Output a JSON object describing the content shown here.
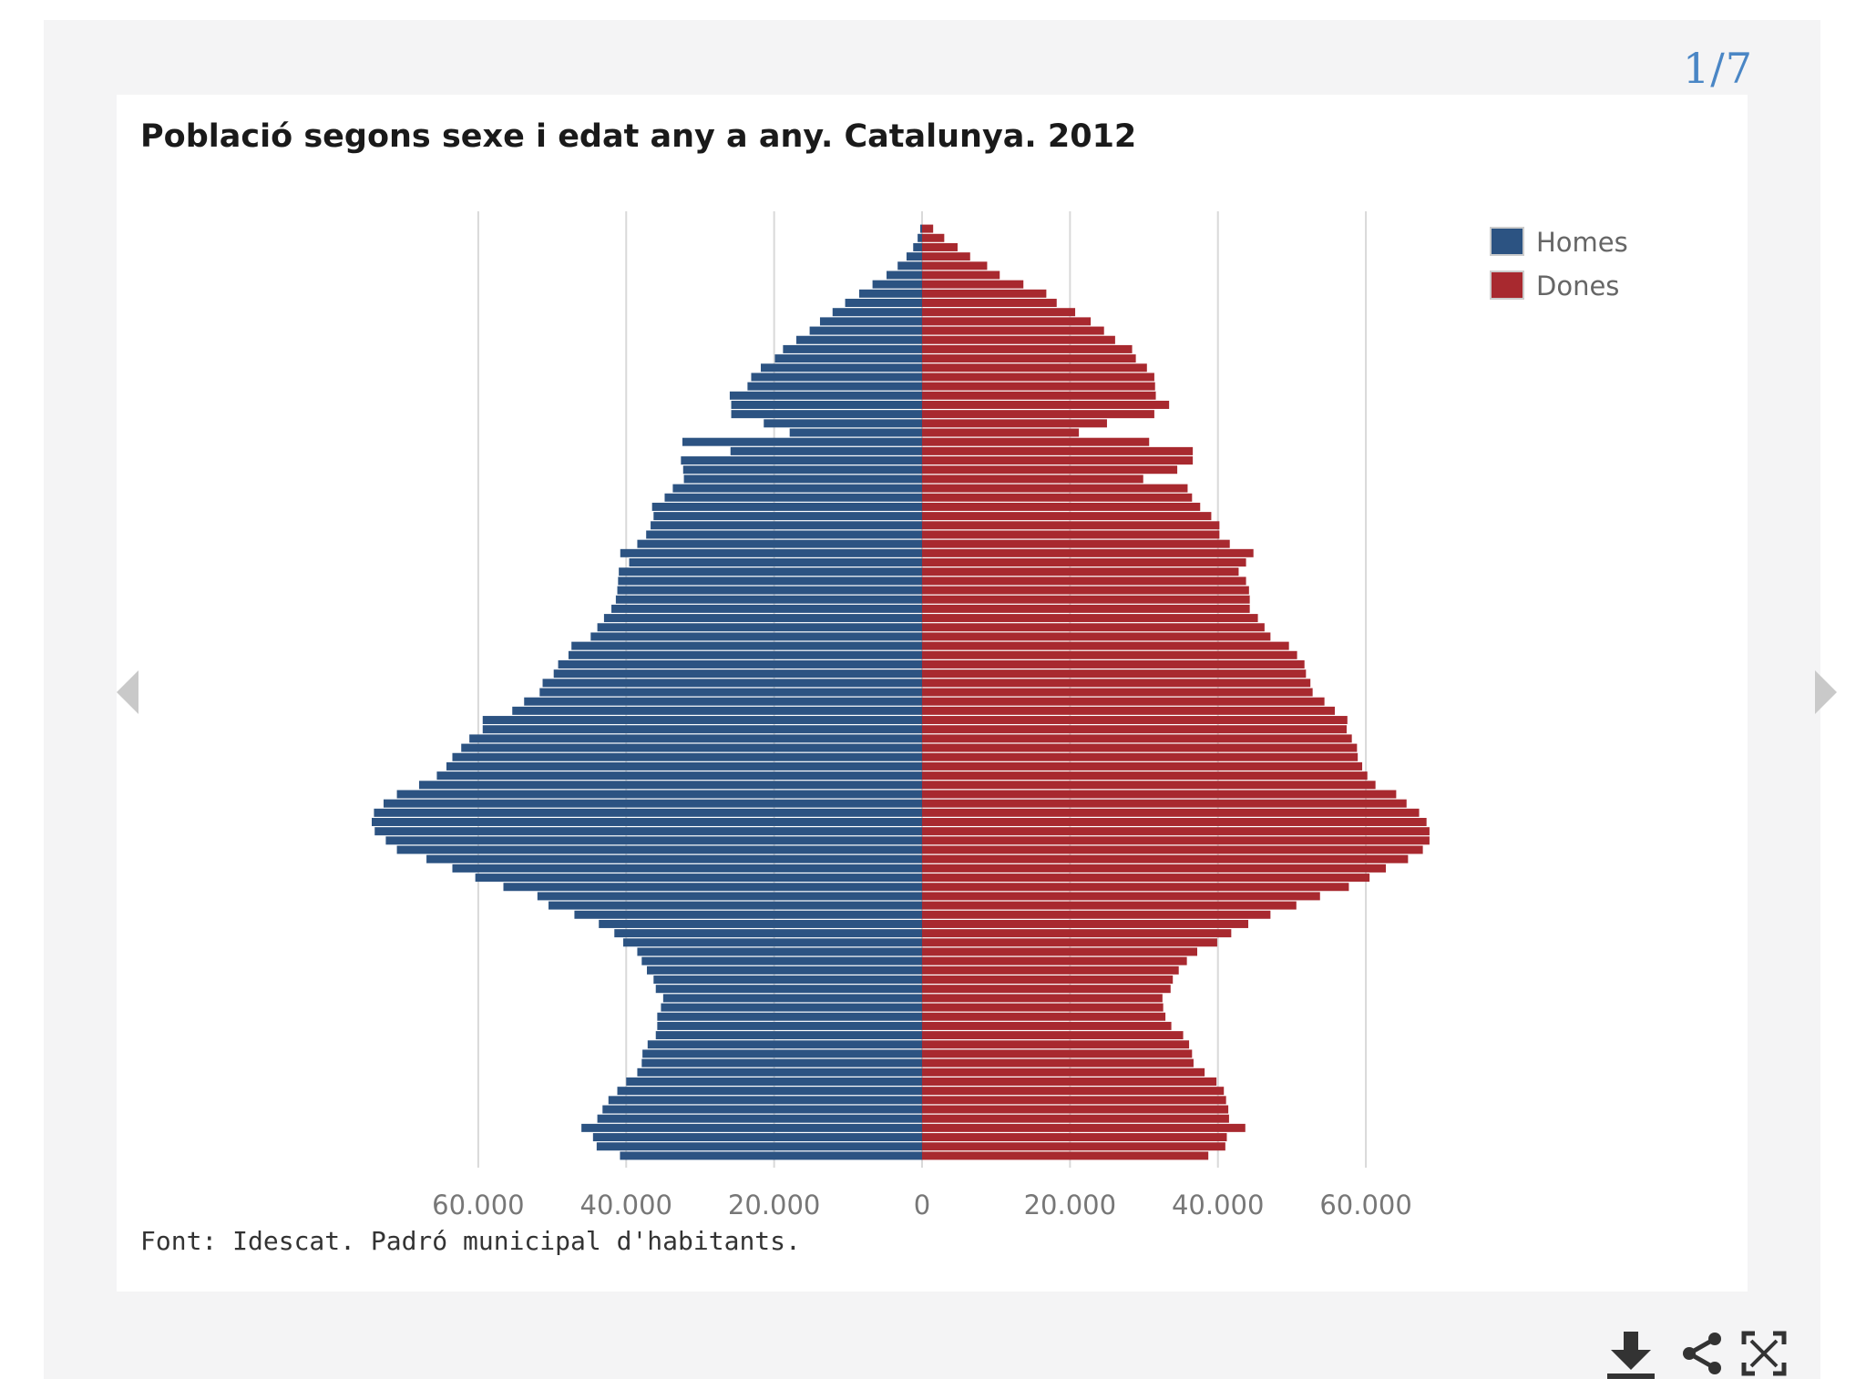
{
  "counter": "1/7",
  "colors": {
    "homes": "#2c5382",
    "dones": "#a8292f",
    "grid": "#d9d9d9",
    "accent": "#4a86c5"
  },
  "icons": {
    "prev": "chevron-left-icon",
    "next": "chevron-right-icon",
    "download": "download-icon",
    "share": "share-icon",
    "fullscreen": "fullscreen-icon"
  },
  "chart_data": {
    "type": "bar",
    "orientation": "horizontal",
    "title": "Població segons sexe i edat any a any. Catalunya. 2012",
    "source": "Font: Idescat. Padró municipal d'habitants.",
    "categories_note": "single years of age 0-100, bottom = 0",
    "xlim": [
      -75000,
      75000
    ],
    "x_ticks": [
      {
        "value": -60000,
        "label": "60.000"
      },
      {
        "value": -40000,
        "label": "40.000"
      },
      {
        "value": -20000,
        "label": "20.000"
      },
      {
        "value": 0,
        "label": "0"
      },
      {
        "value": 20000,
        "label": "20.000"
      },
      {
        "value": 40000,
        "label": "40.000"
      },
      {
        "value": 60000,
        "label": "60.000"
      }
    ],
    "grid": true,
    "legend_position": "top-right",
    "series": [
      {
        "name": "Homes",
        "side": "left",
        "values": [
          40840,
          43992,
          44488,
          46052,
          43900,
          43200,
          42400,
          41200,
          40000,
          38500,
          37900,
          37800,
          37100,
          36000,
          35800,
          35800,
          35300,
          35000,
          36000,
          36300,
          37200,
          37900,
          38500,
          40400,
          41600,
          43700,
          47000,
          50500,
          52000,
          56600,
          60400,
          63500,
          67000,
          71000,
          72500,
          74000,
          74400,
          74100,
          72800,
          71000,
          68000,
          65600,
          64300,
          63500,
          62300,
          61200,
          59400,
          59400,
          55400,
          53800,
          51700,
          51300,
          49800,
          49200,
          47800,
          47400,
          44800,
          43900,
          43000,
          42000,
          41400,
          41200,
          41100,
          41000,
          39600,
          40800,
          38500,
          37300,
          36700,
          36300,
          36500,
          34800,
          33700,
          32200,
          32300,
          32600,
          25900,
          32400,
          17900,
          21400,
          25800,
          25800,
          26000,
          23600,
          23100,
          21800,
          19900,
          18800,
          17000,
          15200,
          13800,
          12100,
          10400,
          8500,
          6700,
          4800,
          3300,
          2100,
          1200,
          600,
          250
        ]
      },
      {
        "name": "Dones",
        "side": "right",
        "values": [
          38700,
          41000,
          41200,
          43700,
          41500,
          41400,
          41100,
          40800,
          39800,
          38200,
          36700,
          36500,
          36100,
          35300,
          33700,
          32900,
          32600,
          32500,
          33600,
          33900,
          34700,
          35800,
          37200,
          39900,
          41800,
          44100,
          47100,
          50600,
          53800,
          57700,
          60500,
          62700,
          65700,
          67700,
          68600,
          68600,
          68200,
          67200,
          65500,
          64100,
          61300,
          60200,
          59500,
          58900,
          58800,
          58100,
          57400,
          57500,
          55800,
          54400,
          52800,
          52500,
          51900,
          51700,
          50700,
          49600,
          47100,
          46300,
          45400,
          44300,
          44300,
          44200,
          43800,
          42800,
          43800,
          44800,
          41600,
          40200,
          40200,
          39100,
          37600,
          36500,
          35900,
          29900,
          34500,
          36600,
          36600,
          30700,
          21200,
          25000,
          31400,
          33400,
          31600,
          31500,
          31400,
          30400,
          28900,
          28400,
          26100,
          24600,
          22800,
          20700,
          18200,
          16800,
          13700,
          10500,
          8800,
          6500,
          4800,
          3000,
          1500
        ]
      }
    ]
  }
}
